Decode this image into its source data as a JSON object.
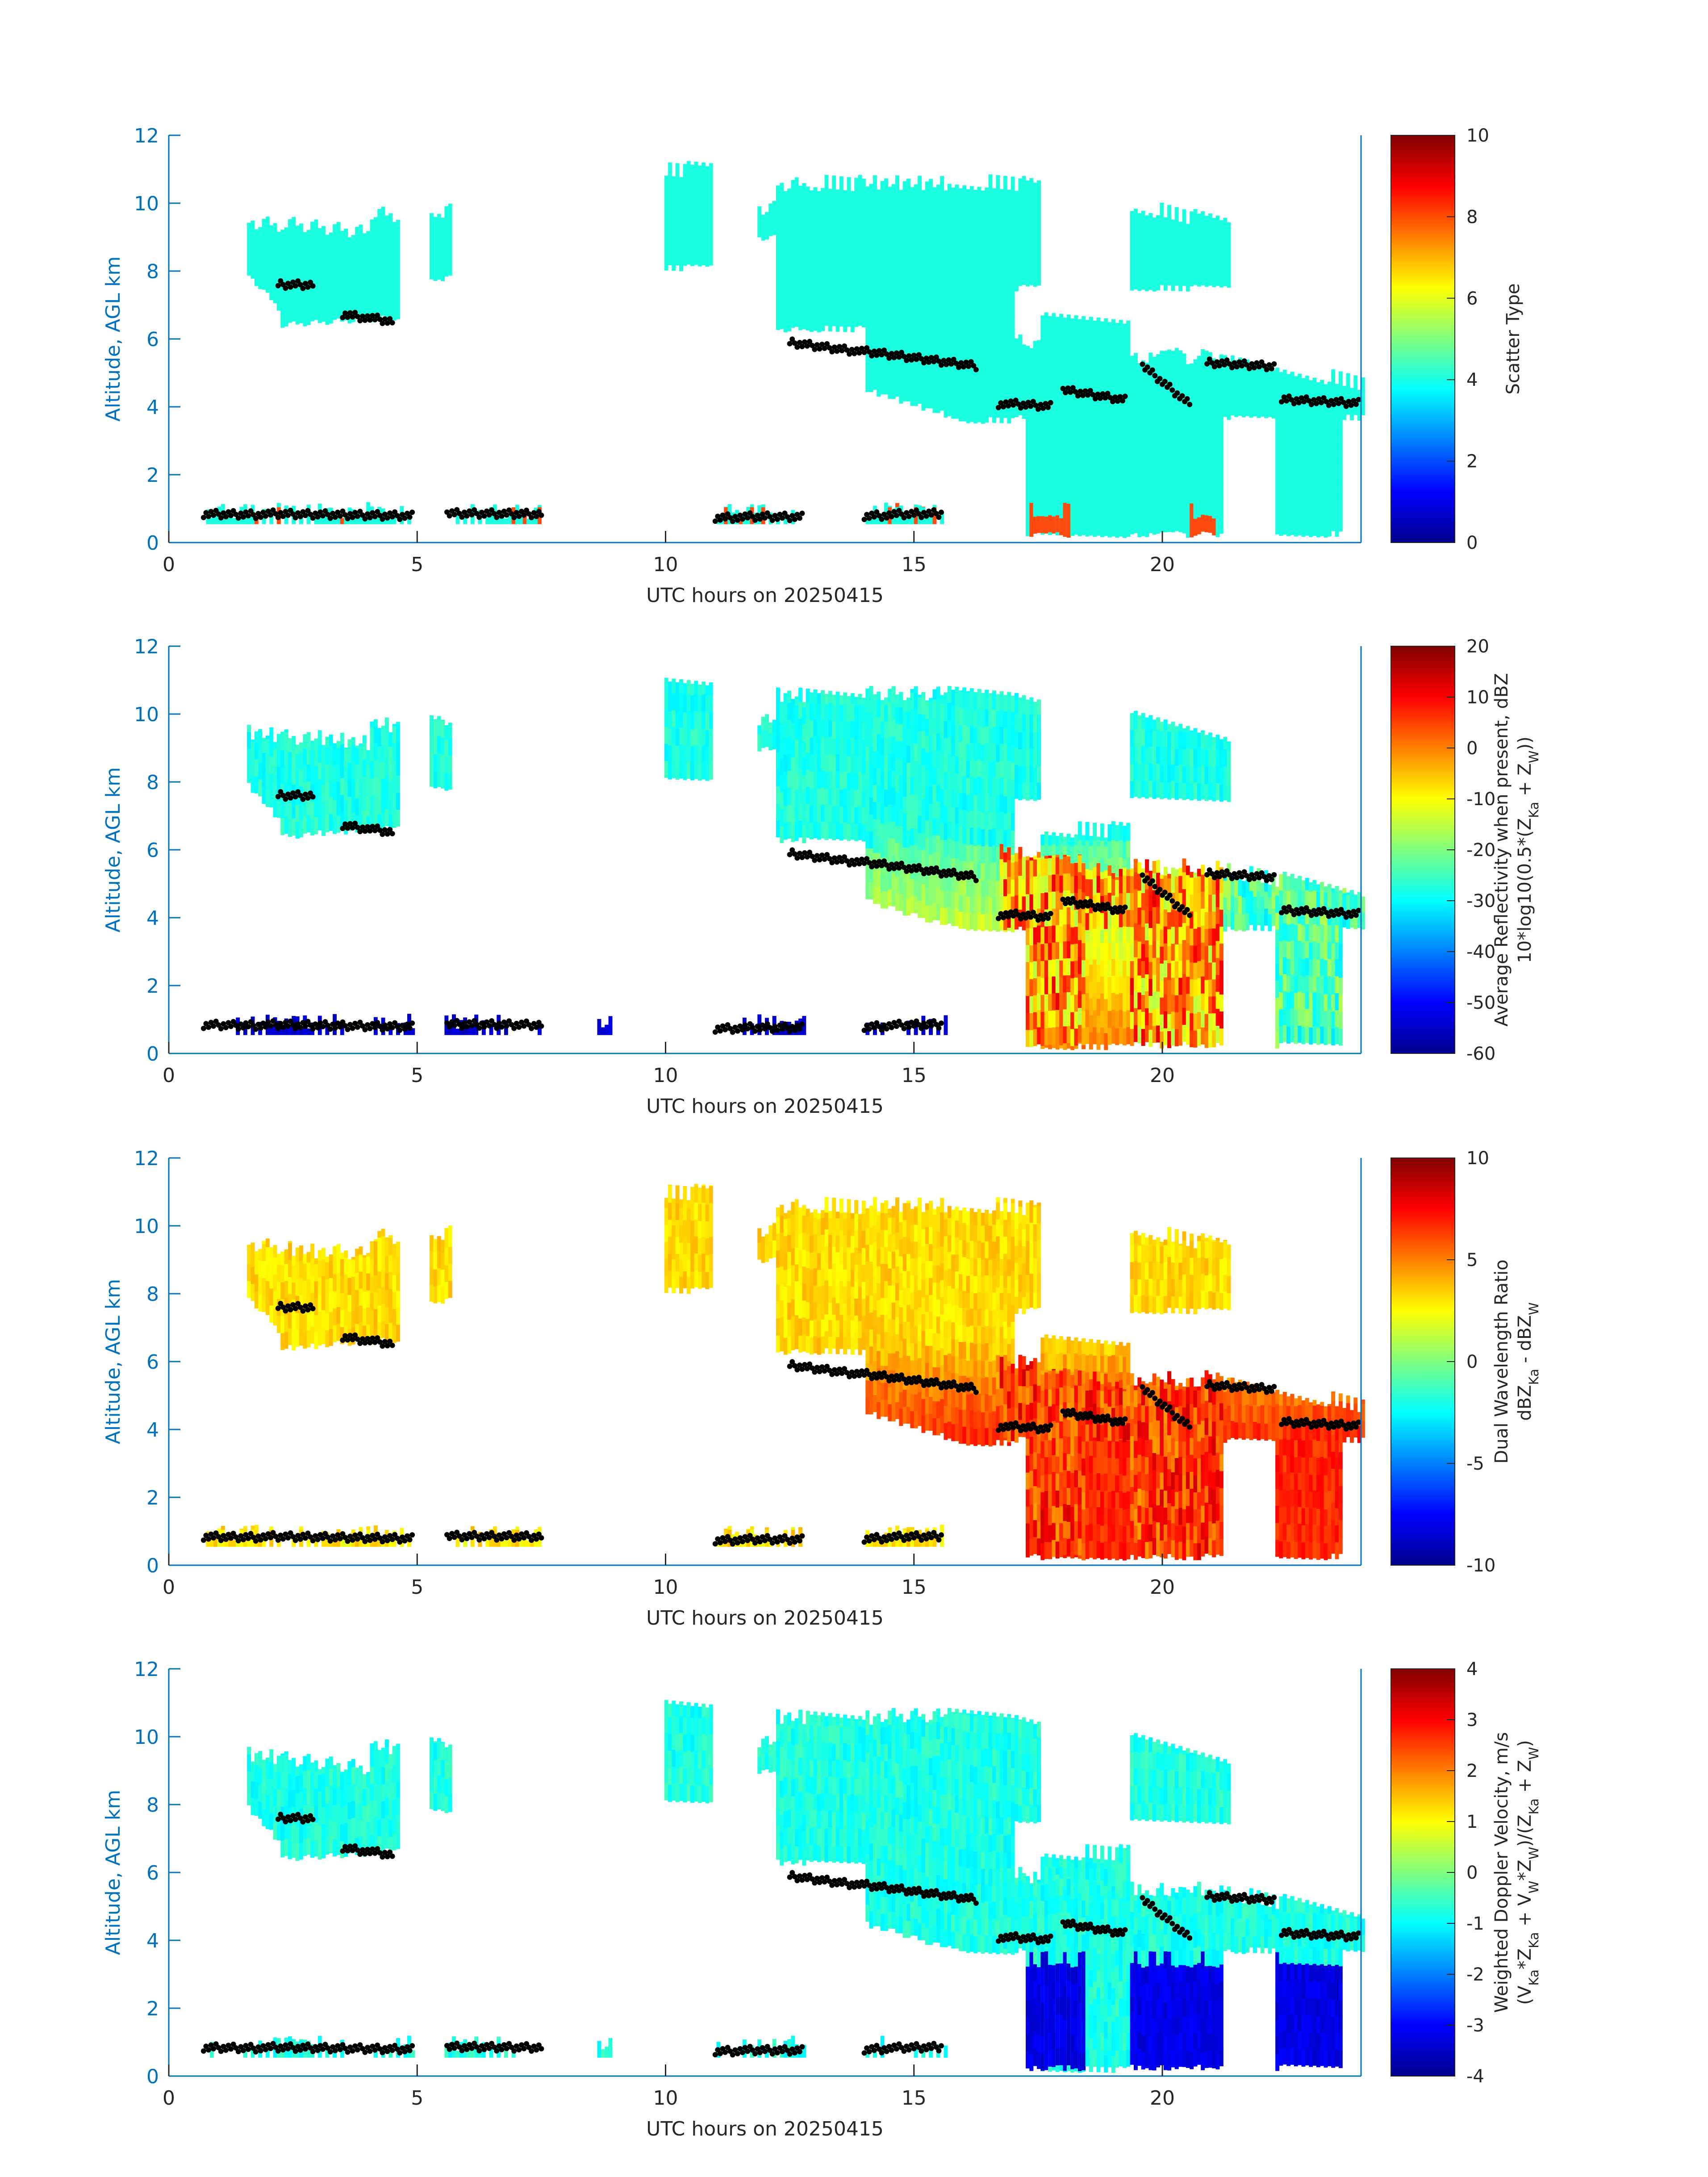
{
  "colors": {
    "axis": "#0072bd",
    "text": "#262626",
    "cloud_mask": "#19ffe0",
    "markers": "#000000",
    "colormap": "jet"
  },
  "chart_data": [
    {
      "type": "heatmap",
      "title": "",
      "xlabel": "UTC hours on 20250415",
      "ylabel": "Altitude, AGL km",
      "xlim": [
        0,
        24
      ],
      "ylim": [
        0,
        12
      ],
      "xticks": [
        "0",
        "5",
        "10",
        "15",
        "20"
      ],
      "yticks": [
        "0",
        "2",
        "4",
        "6",
        "8",
        "10",
        "12"
      ],
      "colorbar": {
        "label_lines": [
          "Scatter Type"
        ],
        "clim": [
          0,
          10
        ],
        "ticks": [
          "0",
          "2",
          "4",
          "6",
          "8",
          "10"
        ]
      },
      "field": "scatter type (dominant value ≈ 4 in cloud, ≈ 8–9 near surface in precipitation)"
    },
    {
      "type": "heatmap",
      "title": "",
      "xlabel": "UTC hours on 20250415",
      "ylabel": "Altitude, AGL km",
      "xlim": [
        0,
        24
      ],
      "ylim": [
        0,
        12
      ],
      "xticks": [
        "0",
        "5",
        "10",
        "15",
        "20"
      ],
      "yticks": [
        "0",
        "2",
        "4",
        "6",
        "8",
        "10",
        "12"
      ],
      "colorbar": {
        "label_lines": [
          "Average Reflectivity when present, dBZ",
          "10*log10(0.5*(Z_Ka + Z_W))"
        ],
        "clim": [
          -60,
          20
        ],
        "ticks": [
          "-60",
          "-50",
          "-40",
          "-30",
          "-20",
          "-10",
          "0",
          "10",
          "20"
        ]
      },
      "field": "average reflectivity (≈ -30 dBZ at cloud edges, up to ≈ 10 dBZ in precipitation 15–21 h)"
    },
    {
      "type": "heatmap",
      "title": "",
      "xlabel": "UTC hours on 20250415",
      "ylabel": "Altitude, AGL km",
      "xlim": [
        0,
        24
      ],
      "ylim": [
        0,
        12
      ],
      "xticks": [
        "0",
        "5",
        "10",
        "15",
        "20"
      ],
      "yticks": [
        "0",
        "2",
        "4",
        "6",
        "8",
        "10",
        "12"
      ],
      "colorbar": {
        "label_lines": [
          "Dual Wavelength Ratio",
          "dBZ_Ka - dBZ_W"
        ],
        "clim": [
          -10,
          10
        ],
        "ticks": [
          "-10",
          "-5",
          "0",
          "5",
          "10"
        ]
      },
      "field": "dual wavelength ratio (≈ 2–4 dB in upper cloud, ≈ 6–9 dB near 4–6 km after 15 h)"
    },
    {
      "type": "heatmap",
      "title": "",
      "xlabel": "UTC hours on 20250415",
      "ylabel": "Altitude, AGL km",
      "xlim": [
        0,
        24
      ],
      "ylim": [
        0,
        12
      ],
      "xticks": [
        "0",
        "5",
        "10",
        "15",
        "20"
      ],
      "yticks": [
        "0",
        "2",
        "4",
        "6",
        "8",
        "10",
        "12"
      ],
      "colorbar": {
        "label_lines": [
          "Weighted Doppler Velocity, m/s",
          "(V_Ka*Z_Ka + V_W*Z_W)/(Z_Ka + Z_W)"
        ],
        "clim": [
          -4,
          4
        ],
        "ticks": [
          "-4",
          "-3",
          "-2",
          "-1",
          "0",
          "1",
          "2",
          "3",
          "4"
        ]
      },
      "field": "weighted Doppler velocity (≈ -1 m/s in cloud, ≈ -3.5 m/s in rain below 3 km)"
    }
  ]
}
